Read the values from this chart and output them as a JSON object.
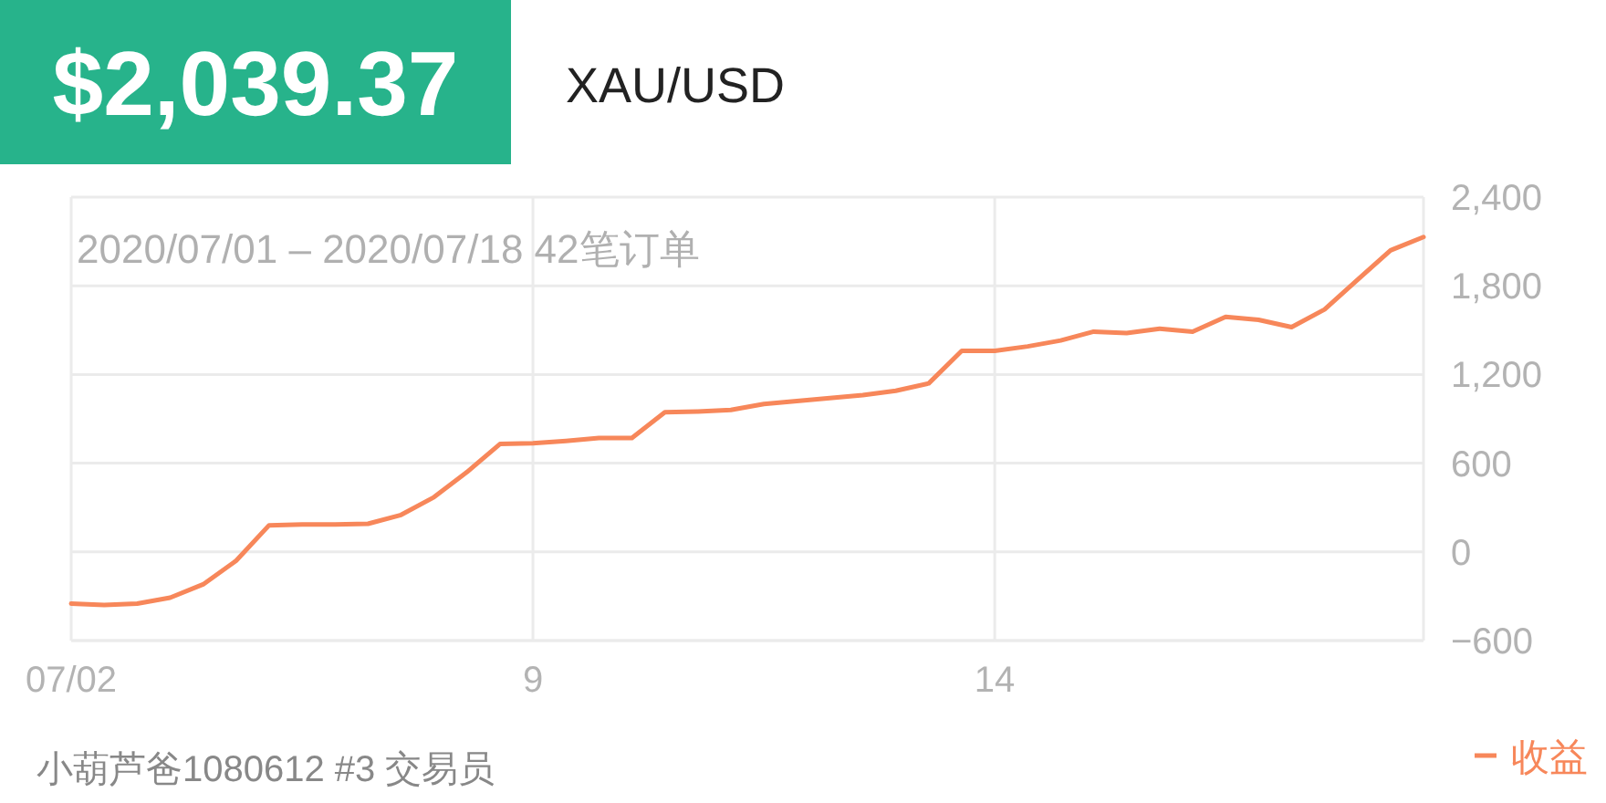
{
  "chart_data": {
    "type": "line",
    "title": "$2,039.37",
    "subtitle": "XAU/USD",
    "annotations": [
      "2020/07/01 – 2020/07/18 42笔订单",
      "小葫芦爸1080612 #3 交易员"
    ],
    "categories": [
      "07/02",
      null,
      null,
      null,
      null,
      null,
      null,
      null,
      null,
      null,
      null,
      null,
      null,
      null,
      "9",
      null,
      null,
      null,
      null,
      null,
      null,
      null,
      null,
      null,
      null,
      null,
      null,
      null,
      "14",
      null,
      null,
      null,
      null,
      null,
      null,
      null,
      null,
      null,
      null,
      null,
      null,
      null
    ],
    "series": [
      {
        "name": "收益",
        "color": "#f7875a",
        "values": [
          -350,
          -360,
          -350,
          -310,
          -220,
          -60,
          180,
          185,
          185,
          190,
          250,
          370,
          540,
          730,
          735,
          750,
          770,
          770,
          945,
          950,
          960,
          1000,
          1020,
          1040,
          1060,
          1090,
          1140,
          1360,
          1360,
          1390,
          1430,
          1490,
          1480,
          1510,
          1490,
          1590,
          1570,
          1520,
          1640,
          1840,
          2040,
          2130
        ]
      }
    ],
    "ylim": [
      -600,
      2400
    ],
    "yticks": [
      {
        "value": -600,
        "label": "−600"
      },
      0,
      600,
      {
        "value": 1200,
        "label": "1,200"
      },
      {
        "value": 1800,
        "label": "1,800"
      },
      {
        "value": 2400,
        "label": "2,400"
      }
    ],
    "grid": true,
    "legend": "bottom right"
  }
}
